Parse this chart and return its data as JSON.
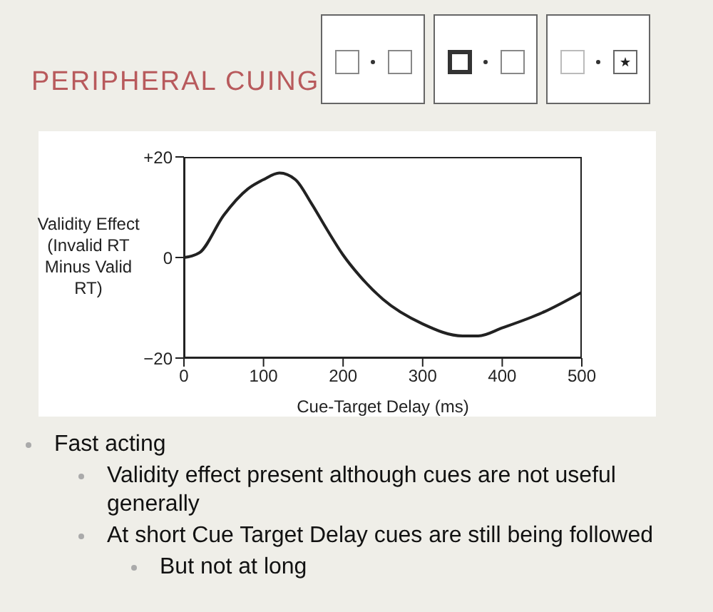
{
  "chart_data": {
    "type": "line",
    "title": "PERIPHERAL CUING",
    "xlabel": "Cue-Target Delay (ms)",
    "ylabel": "Validity Effect (Invalid RT Minus Valid RT)",
    "x": [
      0,
      10,
      20,
      50,
      80,
      100,
      120,
      140,
      160,
      180,
      200,
      220,
      250,
      300,
      350,
      370,
      400,
      450,
      500
    ],
    "series": [
      {
        "color": "#222222",
        "values": [
          0,
          0.3,
          1,
          8.4,
          13.6,
          15.5,
          16.8,
          15.5,
          10.8,
          5.5,
          0.5,
          -3.5,
          -8.3,
          -13.2,
          -15.6,
          -15.6,
          -14,
          -11,
          -6.9
        ]
      }
    ],
    "xlim": [
      0,
      500
    ],
    "xticks": [
      0,
      100,
      200,
      300,
      400,
      500
    ],
    "ylim": [
      -20,
      20
    ],
    "yticks": [
      {
        "value": -20,
        "label": "−20"
      },
      0,
      {
        "value": 20,
        "label": "+20"
      }
    ],
    "marker": "none",
    "line_style": "solid",
    "annotations": [
      "Fast acting",
      "Validity effect present although cues are not useful generally",
      "At short Cue Target Delay cues are still being followed",
      "But not at long"
    ]
  }
}
